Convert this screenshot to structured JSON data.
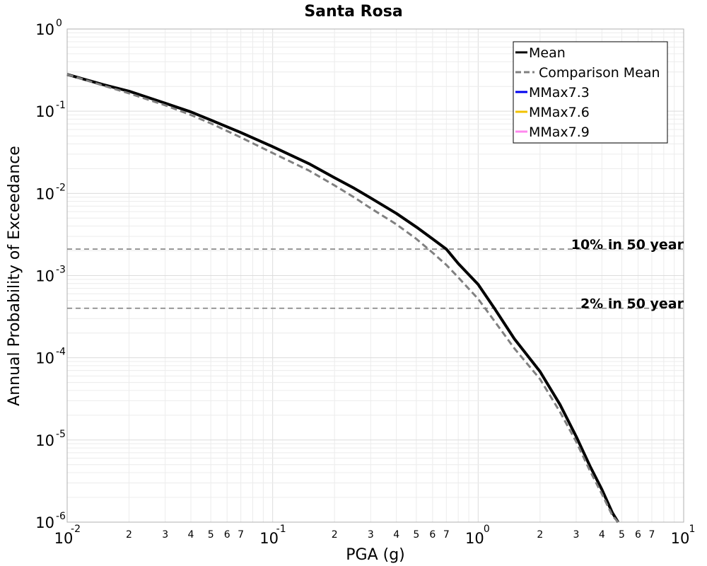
{
  "chart_data": {
    "type": "line",
    "title": "Santa Rosa",
    "xlabel": "PGA (g)",
    "ylabel": "Annual Probability of Exceedance",
    "xscale": "log",
    "yscale": "log",
    "xlim": [
      0.01,
      10
    ],
    "ylim": [
      1e-06,
      1
    ],
    "grid": true,
    "legend_position": "top-right",
    "x_major_ticks": [
      {
        "base": "10",
        "exp": "-2",
        "value": 0.01
      },
      {
        "base": "10",
        "exp": "-1",
        "value": 0.1
      },
      {
        "base": "10",
        "exp": "0",
        "value": 1
      },
      {
        "base": "10",
        "exp": "1",
        "value": 10
      }
    ],
    "x_minor_tick_labels": [
      "2",
      "3",
      "4",
      "5",
      "6",
      "7"
    ],
    "y_major_ticks": [
      {
        "base": "10",
        "exp": "0",
        "value": 1
      },
      {
        "base": "10",
        "exp": "-1",
        "value": 0.1
      },
      {
        "base": "10",
        "exp": "-2",
        "value": 0.01
      },
      {
        "base": "10",
        "exp": "-3",
        "value": 0.001
      },
      {
        "base": "10",
        "exp": "-4",
        "value": 0.0001
      },
      {
        "base": "10",
        "exp": "-5",
        "value": 1e-05
      },
      {
        "base": "10",
        "exp": "-6",
        "value": 1e-06
      }
    ],
    "reference_lines": [
      {
        "label": "10% in 50 year",
        "y": 0.0021,
        "color": "#808080"
      },
      {
        "label": "2% in 50 year",
        "y": 0.0004,
        "color": "#808080"
      }
    ],
    "series": [
      {
        "name": "Mean",
        "color": "#000000",
        "style": "solid",
        "x": [
          0.01,
          0.015,
          0.02,
          0.03,
          0.04,
          0.05,
          0.07,
          0.1,
          0.15,
          0.2,
          0.25,
          0.3,
          0.4,
          0.5,
          0.6,
          0.7,
          0.8,
          1.0,
          1.2,
          1.5,
          2.0,
          2.5,
          3.0,
          3.5,
          4.0,
          4.5,
          4.8
        ],
        "y": [
          0.28,
          0.21,
          0.175,
          0.125,
          0.098,
          0.078,
          0.055,
          0.037,
          0.023,
          0.0155,
          0.0115,
          0.0088,
          0.0057,
          0.0039,
          0.0028,
          0.0021,
          0.0014,
          0.00078,
          0.0004,
          0.00017,
          6.8e-05,
          2.7e-05,
          1.1e-05,
          4.8e-06,
          2.5e-06,
          1.3e-06,
          1e-06
        ]
      },
      {
        "name": "Comparison Mean",
        "color": "#808080",
        "style": "dashed",
        "x": [
          0.01,
          0.015,
          0.02,
          0.03,
          0.04,
          0.05,
          0.07,
          0.1,
          0.15,
          0.2,
          0.25,
          0.3,
          0.4,
          0.5,
          0.6,
          0.7,
          0.8,
          1.0,
          1.2,
          1.5,
          2.0,
          2.5,
          3.0,
          3.5,
          4.0,
          4.5,
          4.8
        ],
        "y": [
          0.28,
          0.205,
          0.165,
          0.118,
          0.09,
          0.071,
          0.048,
          0.031,
          0.019,
          0.0125,
          0.0089,
          0.0066,
          0.0042,
          0.0028,
          0.0019,
          0.00135,
          0.00095,
          0.00052,
          0.00028,
          0.00013,
          5.5e-05,
          2.2e-05,
          9.5e-06,
          4.2e-06,
          2.2e-06,
          1.2e-06,
          1e-06
        ]
      },
      {
        "name": "MMax7.3",
        "color": "#0000ee",
        "style": "solid",
        "x": [],
        "y": []
      },
      {
        "name": "MMax7.6",
        "color": "#f2c200",
        "style": "solid",
        "x": [],
        "y": []
      },
      {
        "name": "MMax7.9",
        "color": "#ff88ee",
        "style": "solid",
        "x": [],
        "y": []
      }
    ]
  }
}
